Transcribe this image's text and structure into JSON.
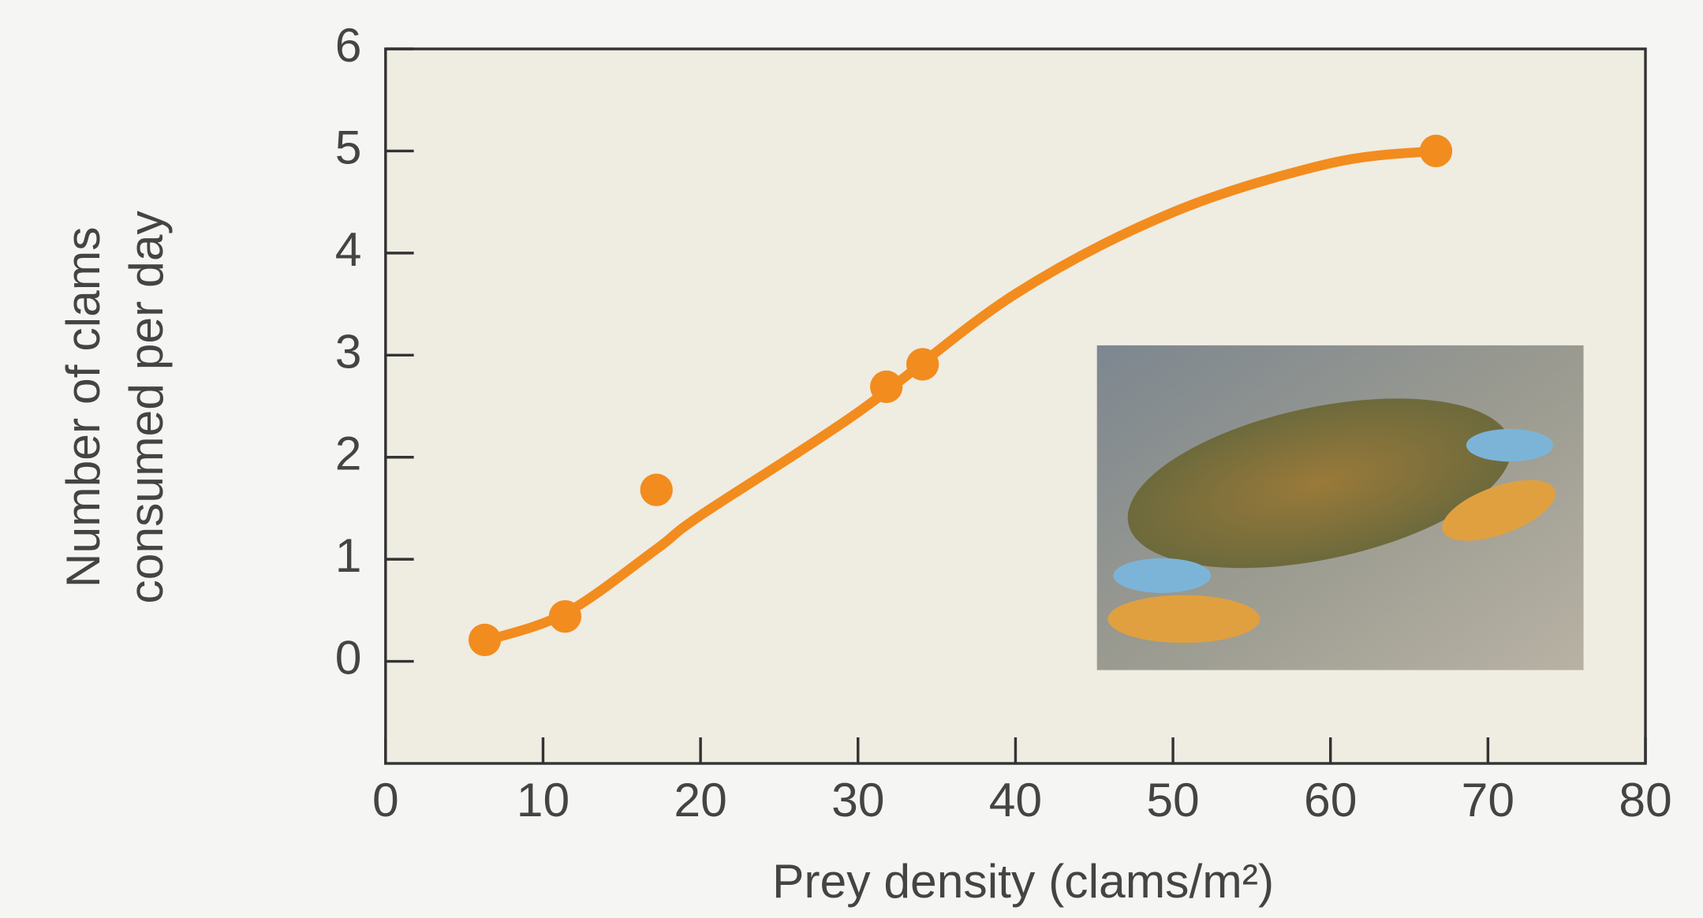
{
  "chart_data": {
    "type": "scatter",
    "xlabel": "Prey density (clams/m²)",
    "ylabel": [
      "Number of clams",
      "consumed per day"
    ],
    "xlim": [
      0,
      80
    ],
    "xticks": [
      0,
      10,
      20,
      30,
      40,
      50,
      60,
      70,
      80
    ],
    "ylim": [
      -1,
      6
    ],
    "yticks": [
      0,
      1,
      2,
      3,
      4,
      5,
      6
    ],
    "series": [
      {
        "type": "scatter",
        "color": "#f28c1e",
        "x": [
          6.3,
          11.4,
          17.2,
          31.8,
          34.1,
          66.7
        ],
        "values": [
          0.21,
          0.44,
          1.68,
          2.69,
          2.91,
          5.0
        ]
      },
      {
        "type": "line",
        "color": "#f28c1e",
        "x": [
          6.3,
          11.4,
          17.2,
          20,
          30,
          40,
          50,
          60,
          66.7
        ],
        "values": [
          0.2,
          0.47,
          1.1,
          1.43,
          2.44,
          3.6,
          4.4,
          4.88,
          5.0
        ]
      }
    ]
  }
}
